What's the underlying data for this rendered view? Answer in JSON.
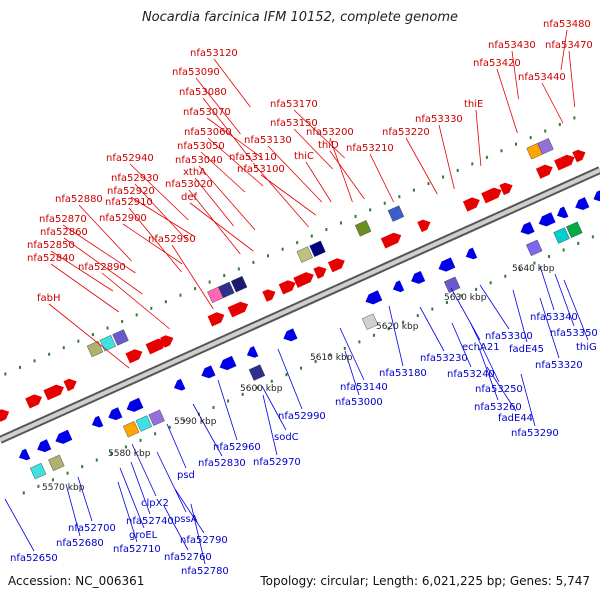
{
  "map": {
    "title": "Nocardia farcinica IFM 10152, complete genome",
    "footer": {
      "accession": "Accession: NC_006361",
      "summary": "Topology: circular; Length: 6,021,225 bp; Genes: 5,747"
    },
    "colors": {
      "forward_gene": "#e60000",
      "reverse_gene": "#0000e6",
      "forward_label": "#cc0000",
      "reverse_label": "#0000cc",
      "backbone": "#888888",
      "tick": "#2e7d32"
    },
    "scale_labels": [
      "5570 kbp",
      "5580 kbp",
      "5590 kbp",
      "5600 kbp",
      "5610 kbp",
      "5620 kbp",
      "5630 kbp",
      "5640 kbp"
    ],
    "forward_labels": [
      "nfa53480",
      "nfa53430",
      "nfa53470",
      "nfa53420",
      "nfa53440",
      "nfa53120",
      "nfa53090",
      "nfa53080",
      "nfa53070",
      "nfa53170",
      "thiE",
      "nfa53330",
      "nfa53150",
      "nfa53060",
      "nfa53130",
      "nfa53200",
      "nfa53050",
      "thiD",
      "nfa53220",
      "nfa53110",
      "thiC",
      "nfa53210",
      "nfa52940",
      "nfa53040",
      "nfa53100",
      "xthA",
      "nfa52930",
      "nfa53020",
      "nfa52920",
      "def",
      "nfa52880",
      "nfa52910",
      "nfa52900",
      "nfa52870",
      "nfa52860",
      "nfa52950",
      "nfa52850",
      "nfa52840",
      "nfa52890",
      "fabH"
    ],
    "reverse_labels": [
      "nfa53340",
      "nfa53350",
      "thiG",
      "nfa53300",
      "fadE45",
      "nfa53320",
      "nfa53230",
      "echA21",
      "nfa53180",
      "nfa53240",
      "nfa53140",
      "nfa53250",
      "nfa53000",
      "nfa53260",
      "nfa52990",
      "fadE44",
      "nfa53290",
      "nfa52960",
      "sodC",
      "nfa52830",
      "nfa52970",
      "psd",
      "clpX2",
      "pssA",
      "nfa52700",
      "nfa52740",
      "groEL",
      "nfa52790",
      "nfa52680",
      "nfa52710",
      "nfa52760",
      "nfa52650",
      "nfa52780"
    ]
  }
}
